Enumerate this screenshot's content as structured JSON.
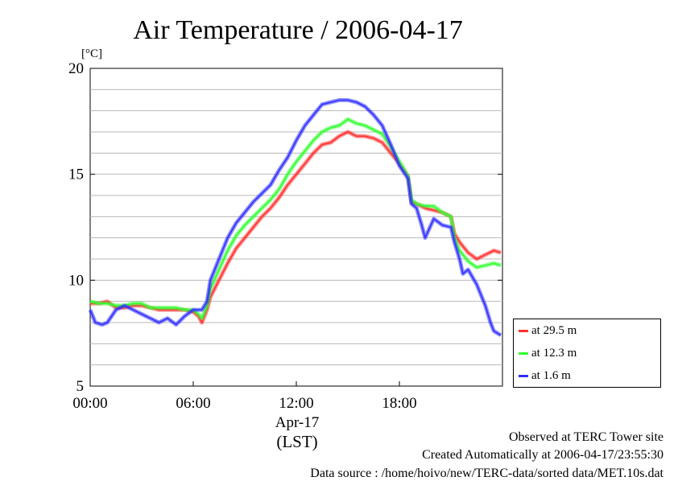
{
  "chart_data": {
    "type": "line",
    "title": "Air Temperature / 2006-04-17",
    "ylabel": "[°C]",
    "ylim": [
      5,
      20
    ],
    "yticks": [
      5,
      10,
      15,
      20
    ],
    "xlim": [
      0,
      24
    ],
    "xticks": [
      {
        "value": 0,
        "label": "00:00"
      },
      {
        "value": 6,
        "label": "06:00"
      },
      {
        "value": 12,
        "label": "12:00"
      },
      {
        "value": 18,
        "label": "18:00"
      }
    ],
    "x_date_label": "Apr-17",
    "x_unit_label": "(LST)",
    "grid": "horizontal minor lines every 1 °C",
    "legend_position": "right-bottom",
    "series": [
      {
        "name": "at 29.5 m",
        "color": "#ff3030",
        "points": [
          [
            0,
            8.9
          ],
          [
            0.5,
            8.9
          ],
          [
            1,
            9.0
          ],
          [
            1.5,
            8.7
          ],
          [
            2,
            8.7
          ],
          [
            2.5,
            8.8
          ],
          [
            3,
            8.8
          ],
          [
            3.5,
            8.7
          ],
          [
            4,
            8.6
          ],
          [
            4.5,
            8.6
          ],
          [
            5,
            8.6
          ],
          [
            5.5,
            8.6
          ],
          [
            6,
            8.5
          ],
          [
            6.3,
            8.3
          ],
          [
            6.5,
            8.0
          ],
          [
            6.8,
            8.6
          ],
          [
            7,
            9.2
          ],
          [
            7.5,
            10.0
          ],
          [
            8,
            10.8
          ],
          [
            8.5,
            11.5
          ],
          [
            9,
            12.0
          ],
          [
            9.5,
            12.5
          ],
          [
            10,
            13.0
          ],
          [
            10.5,
            13.4
          ],
          [
            11,
            13.9
          ],
          [
            11.5,
            14.5
          ],
          [
            12,
            15.0
          ],
          [
            12.5,
            15.5
          ],
          [
            13,
            16.0
          ],
          [
            13.5,
            16.4
          ],
          [
            14,
            16.5
          ],
          [
            14.5,
            16.8
          ],
          [
            15,
            17.0
          ],
          [
            15.5,
            16.8
          ],
          [
            16,
            16.8
          ],
          [
            16.5,
            16.7
          ],
          [
            17,
            16.5
          ],
          [
            17.5,
            16.0
          ],
          [
            18,
            15.5
          ],
          [
            18.5,
            14.9
          ],
          [
            18.7,
            13.7
          ],
          [
            19,
            13.6
          ],
          [
            19.5,
            13.4
          ],
          [
            20,
            13.3
          ],
          [
            20.5,
            13.2
          ],
          [
            21,
            13.0
          ],
          [
            21.2,
            12.2
          ],
          [
            21.5,
            11.8
          ],
          [
            22,
            11.3
          ],
          [
            22.5,
            11.0
          ],
          [
            23,
            11.2
          ],
          [
            23.5,
            11.4
          ],
          [
            23.9,
            11.3
          ]
        ]
      },
      {
        "name": "at 12.3 m",
        "color": "#30ff30",
        "points": [
          [
            0,
            9.0
          ],
          [
            0.5,
            8.9
          ],
          [
            1,
            8.9
          ],
          [
            1.5,
            8.8
          ],
          [
            2,
            8.8
          ],
          [
            2.5,
            8.9
          ],
          [
            3,
            8.9
          ],
          [
            3.5,
            8.7
          ],
          [
            4,
            8.7
          ],
          [
            4.5,
            8.7
          ],
          [
            5,
            8.7
          ],
          [
            5.5,
            8.6
          ],
          [
            6,
            8.6
          ],
          [
            6.3,
            8.4
          ],
          [
            6.5,
            8.2
          ],
          [
            6.8,
            8.8
          ],
          [
            7,
            9.6
          ],
          [
            7.5,
            10.5
          ],
          [
            8,
            11.4
          ],
          [
            8.5,
            12.1
          ],
          [
            9,
            12.6
          ],
          [
            9.5,
            13.0
          ],
          [
            10,
            13.4
          ],
          [
            10.5,
            13.8
          ],
          [
            11,
            14.3
          ],
          [
            11.5,
            15.0
          ],
          [
            12,
            15.6
          ],
          [
            12.5,
            16.1
          ],
          [
            13,
            16.6
          ],
          [
            13.5,
            17.0
          ],
          [
            14,
            17.2
          ],
          [
            14.5,
            17.3
          ],
          [
            15,
            17.6
          ],
          [
            15.5,
            17.4
          ],
          [
            16,
            17.3
          ],
          [
            16.5,
            17.1
          ],
          [
            17,
            16.9
          ],
          [
            17.5,
            16.3
          ],
          [
            18,
            15.6
          ],
          [
            18.5,
            14.9
          ],
          [
            18.7,
            13.8
          ],
          [
            19,
            13.6
          ],
          [
            19.5,
            13.5
          ],
          [
            20,
            13.5
          ],
          [
            20.5,
            13.2
          ],
          [
            21,
            13.0
          ],
          [
            21.2,
            12.0
          ],
          [
            21.5,
            11.4
          ],
          [
            22,
            10.9
          ],
          [
            22.5,
            10.6
          ],
          [
            23,
            10.7
          ],
          [
            23.5,
            10.8
          ],
          [
            23.9,
            10.7
          ]
        ]
      },
      {
        "name": "at 1.6 m",
        "color": "#3030ff",
        "points": [
          [
            0,
            8.6
          ],
          [
            0.3,
            8.0
          ],
          [
            0.7,
            7.9
          ],
          [
            1,
            8.0
          ],
          [
            1.5,
            8.6
          ],
          [
            2,
            8.8
          ],
          [
            2.5,
            8.6
          ],
          [
            3,
            8.4
          ],
          [
            3.5,
            8.2
          ],
          [
            4,
            8.0
          ],
          [
            4.5,
            8.2
          ],
          [
            5,
            7.9
          ],
          [
            5.5,
            8.3
          ],
          [
            6,
            8.6
          ],
          [
            6.3,
            8.6
          ],
          [
            6.5,
            8.6
          ],
          [
            6.8,
            9.0
          ],
          [
            7,
            10.0
          ],
          [
            7.5,
            11.0
          ],
          [
            8,
            12.0
          ],
          [
            8.5,
            12.7
          ],
          [
            9,
            13.2
          ],
          [
            9.5,
            13.7
          ],
          [
            10,
            14.1
          ],
          [
            10.5,
            14.5
          ],
          [
            11,
            15.2
          ],
          [
            11.5,
            15.8
          ],
          [
            12,
            16.6
          ],
          [
            12.5,
            17.3
          ],
          [
            13,
            17.8
          ],
          [
            13.5,
            18.3
          ],
          [
            14,
            18.4
          ],
          [
            14.5,
            18.5
          ],
          [
            15,
            18.5
          ],
          [
            15.5,
            18.4
          ],
          [
            16,
            18.2
          ],
          [
            16.5,
            17.8
          ],
          [
            17,
            17.3
          ],
          [
            17.5,
            16.4
          ],
          [
            18,
            15.4
          ],
          [
            18.5,
            14.8
          ],
          [
            18.7,
            13.6
          ],
          [
            19,
            13.4
          ],
          [
            19.3,
            12.6
          ],
          [
            19.5,
            12.0
          ],
          [
            20,
            12.9
          ],
          [
            20.5,
            12.6
          ],
          [
            21,
            12.5
          ],
          [
            21.2,
            11.8
          ],
          [
            21.5,
            11.0
          ],
          [
            21.7,
            10.3
          ],
          [
            22,
            10.5
          ],
          [
            22.5,
            9.8
          ],
          [
            23,
            8.8
          ],
          [
            23.3,
            8.0
          ],
          [
            23.5,
            7.6
          ],
          [
            23.9,
            7.4
          ]
        ]
      }
    ]
  },
  "footer": {
    "line1": "Observed at TERC Tower site",
    "line2": "Created Automatically at 2006-04-17/23:55:30",
    "line3": "Data source : /home/hoivo/new/TERC-data/sorted  data/MET.10s.dat"
  }
}
